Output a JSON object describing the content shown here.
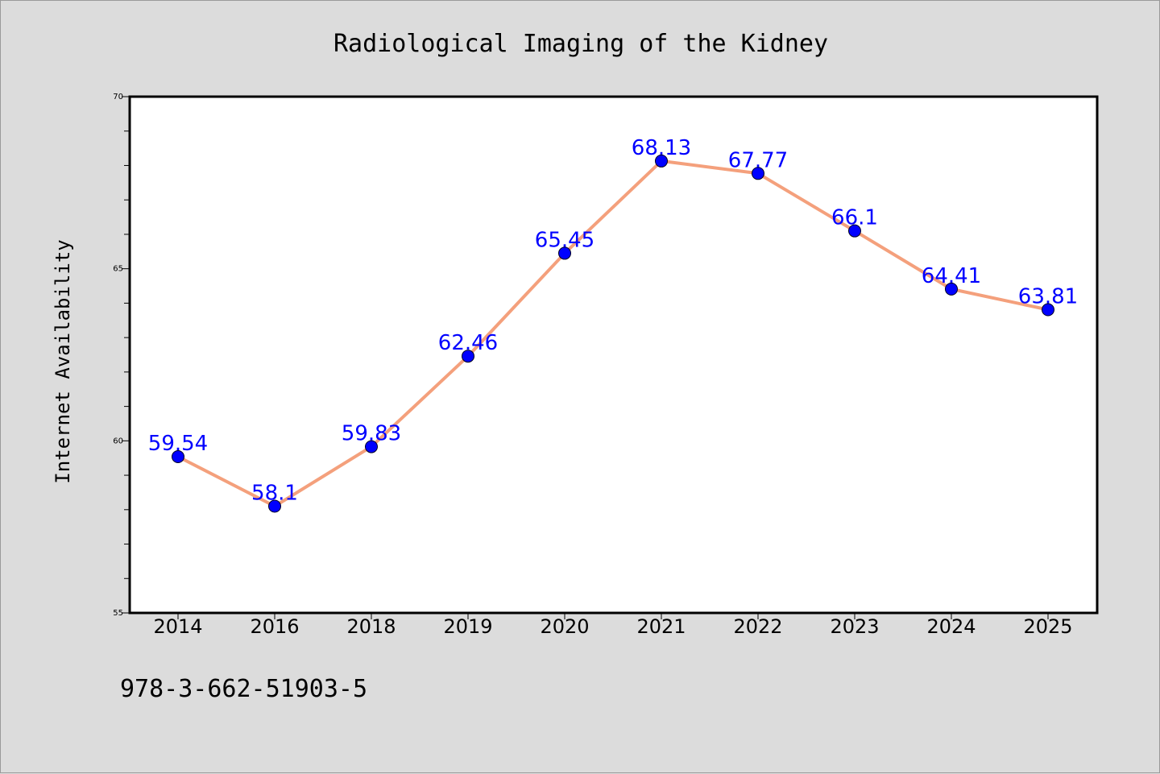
{
  "chart_data": {
    "type": "line",
    "title": "Radiological Imaging of the Kidney",
    "xlabel": "",
    "ylabel": "Internet Availability",
    "categories": [
      "2014",
      "2016",
      "2018",
      "2019",
      "2020",
      "2021",
      "2022",
      "2023",
      "2024",
      "2025"
    ],
    "series": [
      {
        "values": [
          59.54,
          58.1,
          59.83,
          62.46,
          65.45,
          68.13,
          67.77,
          66.1,
          64.41,
          63.81
        ],
        "labels": [
          "59.54",
          "58.1",
          "59.83",
          "62.46",
          "65.45",
          "68.13",
          "67.77",
          "66.1",
          "64.41",
          "63.81"
        ]
      }
    ],
    "ylim": [
      55,
      70
    ],
    "yticks": [
      "55",
      "60",
      "65",
      "70"
    ],
    "grid": false,
    "line_color": "#f4a07c",
    "marker_color": "#0000ff",
    "label_color": "#0000ff"
  },
  "footer": {
    "text": "978-3-662-51903-5"
  }
}
